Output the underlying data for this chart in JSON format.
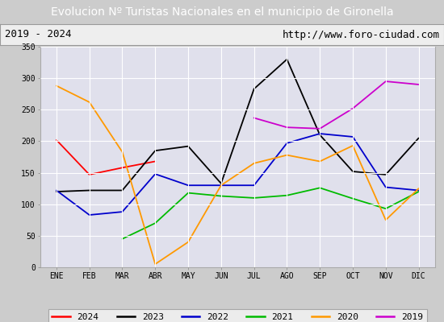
{
  "title": "Evolucion Nº Turistas Nacionales en el municipio de Gironella",
  "subtitle_left": "2019 - 2024",
  "subtitle_right": "http://www.foro-ciudad.com",
  "x_labels": [
    "ENE",
    "FEB",
    "MAR",
    "ABR",
    "MAY",
    "JUN",
    "JUL",
    "AGO",
    "SEP",
    "OCT",
    "NOV",
    "DIC"
  ],
  "ylim": [
    0,
    350
  ],
  "yticks": [
    0,
    50,
    100,
    150,
    200,
    250,
    300,
    350
  ],
  "series": {
    "2024": {
      "color": "#ff0000",
      "data": [
        202,
        147,
        158,
        168,
        null,
        null,
        null,
        null,
        null,
        null,
        null,
        null
      ]
    },
    "2023": {
      "color": "#000000",
      "data": [
        120,
        122,
        122,
        185,
        192,
        133,
        283,
        330,
        210,
        152,
        147,
        205
      ]
    },
    "2022": {
      "color": "#0000cc",
      "data": [
        122,
        83,
        88,
        148,
        130,
        130,
        130,
        197,
        212,
        207,
        127,
        122
      ]
    },
    "2021": {
      "color": "#00bb00",
      "data": [
        null,
        null,
        45,
        70,
        118,
        113,
        110,
        114,
        126,
        109,
        93,
        120
      ]
    },
    "2020": {
      "color": "#ff9900",
      "data": [
        288,
        262,
        183,
        5,
        40,
        130,
        165,
        178,
        168,
        193,
        75,
        125
      ]
    },
    "2019": {
      "color": "#cc00cc",
      "data": [
        null,
        null,
        null,
        null,
        null,
        null,
        237,
        222,
        220,
        252,
        295,
        290
      ]
    }
  },
  "title_bg_color": "#5599cc",
  "title_color": "#ffffff",
  "title_fontsize": 10,
  "bg_color": "#cccccc",
  "plot_bg_color": "#e0e0ec",
  "subtitle_bg_color": "#eeeeee",
  "legend_bg_color": "#f5f5f5",
  "grid_color": "#ffffff",
  "tick_fontsize": 7,
  "legend_fontsize": 8
}
